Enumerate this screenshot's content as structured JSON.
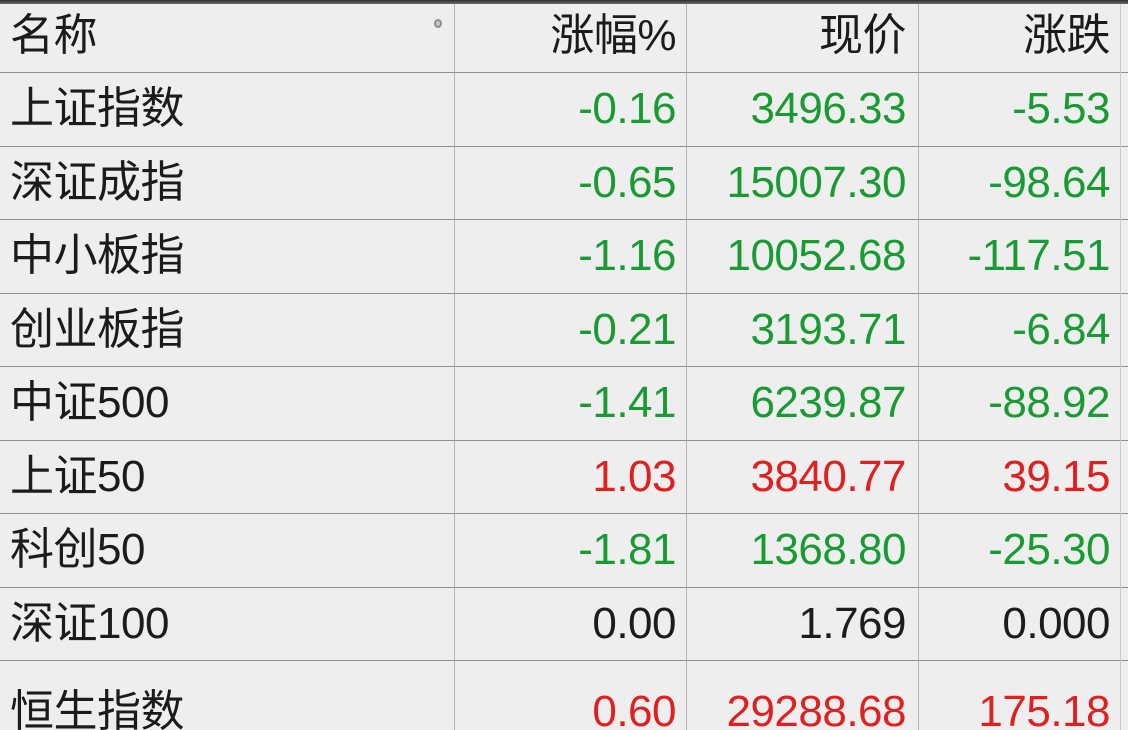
{
  "table": {
    "columns": [
      {
        "key": "name",
        "label": "名称"
      },
      {
        "key": "change_pct",
        "label": "涨幅%"
      },
      {
        "key": "price",
        "label": "现价"
      },
      {
        "key": "change",
        "label": "涨跌"
      }
    ],
    "rows": [
      {
        "name": "上证指数",
        "change_pct": "-0.16",
        "price": "3496.33",
        "change": "-5.53",
        "trend": "down"
      },
      {
        "name": "深证成指",
        "change_pct": "-0.65",
        "price": "15007.30",
        "change": "-98.64",
        "trend": "down"
      },
      {
        "name": "中小板指",
        "change_pct": "-1.16",
        "price": "10052.68",
        "change": "-117.51",
        "trend": "down"
      },
      {
        "name": "创业板指",
        "change_pct": "-0.21",
        "price": "3193.71",
        "change": "-6.84",
        "trend": "down"
      },
      {
        "name": "中证500",
        "change_pct": "-1.41",
        "price": "6239.87",
        "change": "-88.92",
        "trend": "down"
      },
      {
        "name": "上证50",
        "change_pct": "1.03",
        "price": "3840.77",
        "change": "39.15",
        "trend": "up"
      },
      {
        "name": "科创50",
        "change_pct": "-1.81",
        "price": "1368.80",
        "change": "-25.30",
        "trend": "down"
      },
      {
        "name": "深证100",
        "change_pct": "0.00",
        "price": "1.769",
        "change": "0.000",
        "trend": "flat"
      },
      {
        "name": "恒生指数",
        "change_pct": "0.60",
        "price": "29288.68",
        "change": "175.18",
        "trend": "up"
      }
    ],
    "trend_colors": {
      "up": "#e02020",
      "down": "#189b33",
      "flat": "#1c1c1c"
    },
    "colors": {
      "background": "#efeeee",
      "header_text": "#1b1b1b",
      "name_text": "#1b1b1b",
      "row_line": "#8f8f8f",
      "column_line": "#b3b3b3",
      "right_edge_line": "#c9c9c9",
      "top_strip": "#2e2e2e"
    }
  }
}
